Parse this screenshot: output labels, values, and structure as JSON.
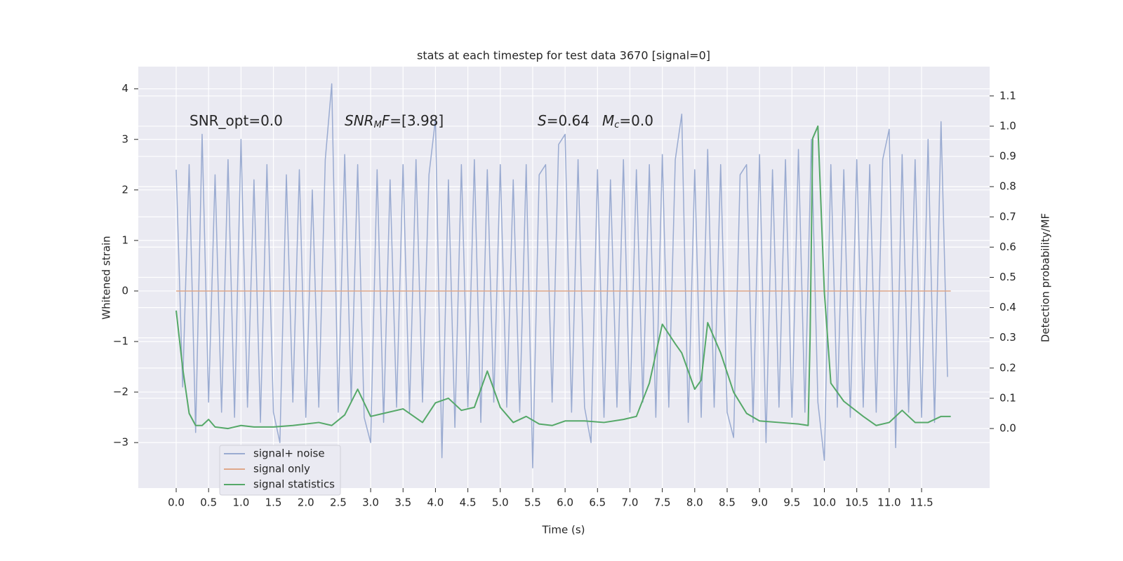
{
  "chart_data": {
    "type": "line",
    "title": "stats at each timestep for test data 3670 [signal=0]",
    "xlabel": "Time (s)",
    "ylabel": "Whitened strain",
    "y2label": "Detection probability/MF",
    "grid": true,
    "legend": "lower left",
    "xlim": [
      -0.585,
      12.55
    ],
    "ylim": [
      -3.9,
      4.44
    ],
    "y2lim": [
      -0.197,
      1.197
    ],
    "xticks": [
      {
        "value": 0,
        "label": "0.0"
      },
      0.5,
      {
        "value": 1,
        "label": "1.0"
      },
      1.5,
      {
        "value": 2,
        "label": "2.0"
      },
      2.5,
      {
        "value": 3,
        "label": "3.0"
      },
      3.5,
      {
        "value": 4,
        "label": "4.0"
      },
      4.5,
      {
        "value": 5,
        "label": "5.0"
      },
      5.5,
      {
        "value": 6,
        "label": "6.0"
      },
      6.5,
      {
        "value": 7,
        "label": "7.0"
      },
      7.5,
      {
        "value": 8,
        "label": "8.0"
      },
      8.5,
      {
        "value": 9,
        "label": "9.0"
      },
      9.5,
      {
        "value": 10,
        "label": "10.0"
      },
      10.5,
      {
        "value": 11,
        "label": "11.0"
      },
      11.5
    ],
    "yticks": [
      {
        "value": -3,
        "label": "−3"
      },
      {
        "value": -2,
        "label": "−2"
      },
      {
        "value": -1,
        "label": "−1"
      },
      0,
      1,
      2,
      3,
      4
    ],
    "y2ticks": [
      {
        "value": 0,
        "label": "0.0"
      },
      0.1,
      0.2,
      0.3,
      0.4,
      0.5,
      0.6,
      0.7,
      0.8,
      0.9,
      {
        "value": 1,
        "label": "1.0"
      },
      1.1
    ],
    "annotations": [
      {
        "parts": [
          {
            "text": "SNR_opt=0.0",
            "style": "normal"
          }
        ]
      },
      {
        "parts": [
          {
            "text": "SNR",
            "style": "italic"
          },
          {
            "text": "M",
            "style": "sub"
          },
          {
            "text": "F",
            "style": "italic"
          },
          {
            "text": "=[3.98]",
            "style": "normal"
          }
        ]
      },
      {
        "parts": [
          {
            "text": "S",
            "style": "italic"
          },
          {
            "text": "=0.64",
            "style": "normal"
          }
        ]
      },
      {
        "parts": [
          {
            "text": "M",
            "style": "italic"
          },
          {
            "text": "c",
            "style": "sub"
          },
          {
            "text": "=0.0",
            "style": "normal"
          }
        ]
      }
    ],
    "series": [
      {
        "name": "signal+ noise",
        "color": "#9aabd1",
        "x": [
          0,
          0.1,
          0.2,
          0.3,
          0.4,
          0.5,
          0.6,
          0.7,
          0.8,
          0.9,
          1,
          1.1,
          1.2,
          1.3,
          1.4,
          1.5,
          1.6,
          1.7,
          1.8,
          1.9,
          2,
          2.1,
          2.2,
          2.3,
          2.4,
          2.5,
          2.6,
          2.7,
          2.8,
          2.9,
          3,
          3.1,
          3.2,
          3.3,
          3.4,
          3.5,
          3.6,
          3.7,
          3.8,
          3.9,
          4,
          4.1,
          4.2,
          4.3,
          4.4,
          4.5,
          4.6,
          4.7,
          4.8,
          4.9,
          5,
          5.1,
          5.2,
          5.3,
          5.4,
          5.5,
          5.6,
          5.7,
          5.8,
          5.9,
          6,
          6.1,
          6.2,
          6.3,
          6.4,
          6.5,
          6.6,
          6.7,
          6.8,
          6.9,
          7,
          7.1,
          7.2,
          7.3,
          7.4,
          7.5,
          7.6,
          7.7,
          7.8,
          7.9,
          8,
          8.1,
          8.2,
          8.3,
          8.4,
          8.5,
          8.6,
          8.7,
          8.8,
          8.9,
          9,
          9.1,
          9.2,
          9.3,
          9.4,
          9.5,
          9.6,
          9.7,
          9.8,
          9.9,
          10,
          10.1,
          10.2,
          10.3,
          10.4,
          10.5,
          10.6,
          10.7,
          10.8,
          10.9,
          11,
          11.1,
          11.2,
          11.3,
          11.4,
          11.5,
          11.6,
          11.7,
          11.8,
          11.9
        ],
        "values": [
          2.4,
          -1.9,
          2.5,
          -2.8,
          3.1,
          -2.2,
          2.3,
          -2.4,
          2.6,
          -2.5,
          3.0,
          -2.3,
          2.2,
          -2.6,
          2.5,
          -2.4,
          -3.0,
          2.3,
          -2.2,
          2.4,
          -2.5,
          2.0,
          -2.3,
          2.6,
          4.1,
          -2.4,
          2.7,
          -2.2,
          2.5,
          -2.5,
          -3.0,
          2.4,
          -2.6,
          2.2,
          -2.3,
          2.5,
          -2.4,
          2.6,
          -2.2,
          2.3,
          3.4,
          -3.3,
          2.2,
          -2.7,
          2.5,
          -2.3,
          2.6,
          -2.6,
          2.4,
          -2.2,
          2.5,
          -2.3,
          2.2,
          -2.4,
          2.5,
          -3.5,
          2.3,
          2.5,
          -2.2,
          2.9,
          3.1,
          -2.4,
          2.6,
          -2.3,
          -3.0,
          2.4,
          -2.5,
          2.2,
          -2.3,
          2.6,
          -2.4,
          2.4,
          -2.2,
          2.5,
          -2.5,
          2.7,
          -2.3,
          2.6,
          3.5,
          -2.6,
          2.4,
          -2.5,
          2.8,
          -2.3,
          2.5,
          -2.4,
          -2.9,
          2.3,
          2.5,
          -2.6,
          2.7,
          -3.0,
          2.4,
          -2.3,
          2.6,
          -2.5,
          2.8,
          -2.4,
          3.0,
          -2.2,
          -3.35,
          2.5,
          -2.3,
          2.4,
          -2.5,
          2.6,
          -2.3,
          2.5,
          -2.4,
          2.6,
          3.2,
          -3.1,
          2.7,
          -2.4,
          2.6,
          -2.5,
          3.0,
          -2.6,
          3.35,
          -1.7
        ]
      },
      {
        "name": "signal only",
        "color": "#dfa88a",
        "x": [
          0,
          11.95
        ],
        "values": [
          0,
          0
        ]
      },
      {
        "name": "signal statistics",
        "color": "#55a868",
        "axis": "y2",
        "x": [
          0,
          0.1,
          0.2,
          0.3,
          0.4,
          0.5,
          0.6,
          0.8,
          1.0,
          1.2,
          1.5,
          1.8,
          2.0,
          2.2,
          2.4,
          2.6,
          2.8,
          3.0,
          3.2,
          3.5,
          3.8,
          4.0,
          4.2,
          4.4,
          4.6,
          4.8,
          5.0,
          5.2,
          5.4,
          5.6,
          5.8,
          6.0,
          6.3,
          6.6,
          6.9,
          7.1,
          7.3,
          7.5,
          7.7,
          7.8,
          8.0,
          8.1,
          8.2,
          8.4,
          8.6,
          8.8,
          9.0,
          9.3,
          9.6,
          9.75,
          9.78,
          9.82,
          9.9,
          10.0,
          10.1,
          10.3,
          10.6,
          10.8,
          11.0,
          11.2,
          11.4,
          11.6,
          11.8,
          11.95
        ],
        "values": [
          0.39,
          0.2,
          0.05,
          0.01,
          0.01,
          0.03,
          0.005,
          0.0,
          0.01,
          0.005,
          0.005,
          0.01,
          0.015,
          0.02,
          0.01,
          0.045,
          0.13,
          0.04,
          0.05,
          0.065,
          0.02,
          0.085,
          0.1,
          0.06,
          0.07,
          0.19,
          0.07,
          0.02,
          0.04,
          0.015,
          0.01,
          0.025,
          0.025,
          0.02,
          0.03,
          0.04,
          0.15,
          0.345,
          0.28,
          0.25,
          0.13,
          0.16,
          0.35,
          0.25,
          0.12,
          0.05,
          0.025,
          0.02,
          0.015,
          0.01,
          0.3,
          0.96,
          1.0,
          0.45,
          0.15,
          0.09,
          0.04,
          0.01,
          0.02,
          0.06,
          0.02,
          0.02,
          0.04,
          0.04
        ]
      }
    ]
  }
}
